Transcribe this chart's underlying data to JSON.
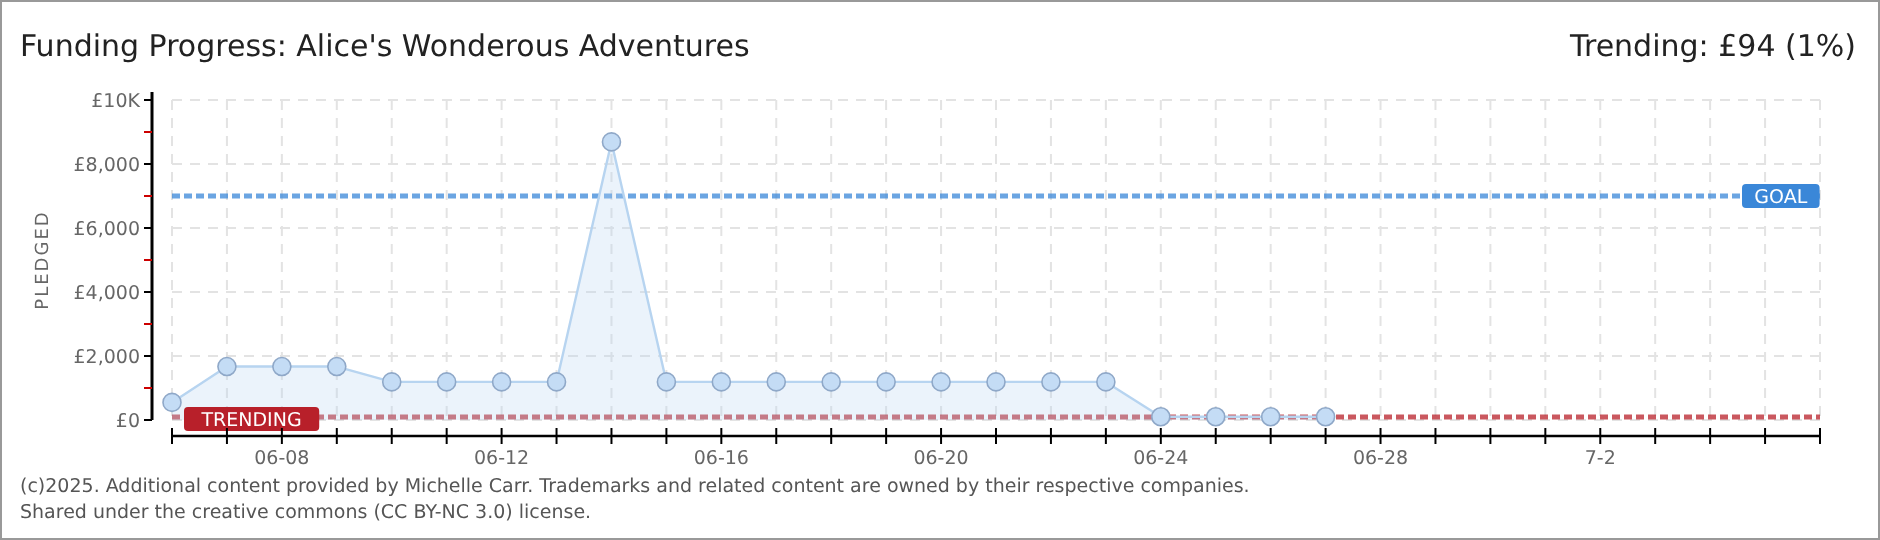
{
  "chart_data": {
    "type": "area",
    "title": "Funding Progress: Alice's Wonderous Adventures",
    "subtitle": "Trending:  £94 (1%)",
    "ylabel": "PLEDGED",
    "x": [
      "--06-06",
      "--06-07",
      "--06-08",
      "--06-09",
      "--06-10",
      "--06-11",
      "--06-12",
      "--06-13",
      "--06-14",
      "--06-15",
      "--06-16",
      "--06-17",
      "--06-18",
      "--06-19",
      "--06-20",
      "--06-21",
      "--06-22",
      "--06-23",
      "--06-24",
      "--06-25",
      "--06-26",
      "--06-27"
    ],
    "series": [
      {
        "color": "#b7d4f0",
        "values": [
          550,
          1670,
          1670,
          1670,
          1190,
          1190,
          1190,
          1190,
          8690,
          1190,
          1190,
          1190,
          1190,
          1190,
          1190,
          1190,
          1190,
          1190,
          100,
          100,
          100,
          100
        ]
      }
    ],
    "xlim": [
      "--06-06",
      "--07-06"
    ],
    "xticks": [
      {
        "value": "--06-06",
        "label": null
      },
      {
        "value": "--06-07",
        "label": null
      },
      {
        "value": "--06-08",
        "label": "06-08"
      },
      {
        "value": "--06-09",
        "label": null
      },
      {
        "value": "--06-10",
        "label": null
      },
      {
        "value": "--06-11",
        "label": null
      },
      {
        "value": "--06-12",
        "label": "06-12"
      },
      {
        "value": "--06-13",
        "label": null
      },
      {
        "value": "--06-14",
        "label": null
      },
      {
        "value": "--06-15",
        "label": null
      },
      {
        "value": "--06-16",
        "label": "06-16"
      },
      {
        "value": "--06-17",
        "label": null
      },
      {
        "value": "--06-18",
        "label": null
      },
      {
        "value": "--06-19",
        "label": null
      },
      {
        "value": "--06-20",
        "label": "06-20"
      },
      {
        "value": "--06-21",
        "label": null
      },
      {
        "value": "--06-22",
        "label": null
      },
      {
        "value": "--06-23",
        "label": null
      },
      {
        "value": "--06-24",
        "label": "06-24"
      },
      {
        "value": "--06-25",
        "label": null
      },
      {
        "value": "--06-26",
        "label": null
      },
      {
        "value": "--06-27",
        "label": null
      },
      {
        "value": "--06-28",
        "label": "06-28"
      },
      {
        "value": "--06-29",
        "label": null
      },
      {
        "value": "--06-30",
        "label": null
      },
      {
        "value": "--07-01",
        "label": null
      },
      {
        "value": "--07-02",
        "label": "7-2"
      },
      {
        "value": "--07-03",
        "label": null
      },
      {
        "value": "--07-04",
        "label": null
      },
      {
        "value": "--07-05",
        "label": null
      },
      {
        "value": "--07-06",
        "label": null
      }
    ],
    "ylim": [
      0,
      10000
    ],
    "yticks": [
      {
        "value": 0,
        "label": "£0"
      },
      {
        "value": 1000,
        "label": null
      },
      {
        "value": 2000,
        "label": "£2,000"
      },
      {
        "value": 3000,
        "label": null
      },
      {
        "value": 4000,
        "label": "£4,000"
      },
      {
        "value": 5000,
        "label": null
      },
      {
        "value": 6000,
        "label": "£6,000"
      },
      {
        "value": 7000,
        "label": null
      },
      {
        "value": 8000,
        "label": "£8,000"
      },
      {
        "value": 9000,
        "label": null
      },
      {
        "value": 10000,
        "label": "£10K"
      }
    ],
    "grid": true,
    "marker": "circle",
    "ref_lines": [
      {
        "axis": "y",
        "value": 7000,
        "label": "GOAL",
        "color": "#3a87d8",
        "line_style": "dotted"
      },
      {
        "axis": "y",
        "value": 94,
        "label": "TRENDING",
        "color": "#b8202a",
        "line_style": "dotted"
      }
    ],
    "annotations": [
      "(c)2025. Additional content provided by Michelle Carr. Trademarks and related content are owned by their respective companies.",
      "Shared under the creative commons (CC BY-NC 3.0) license."
    ]
  }
}
